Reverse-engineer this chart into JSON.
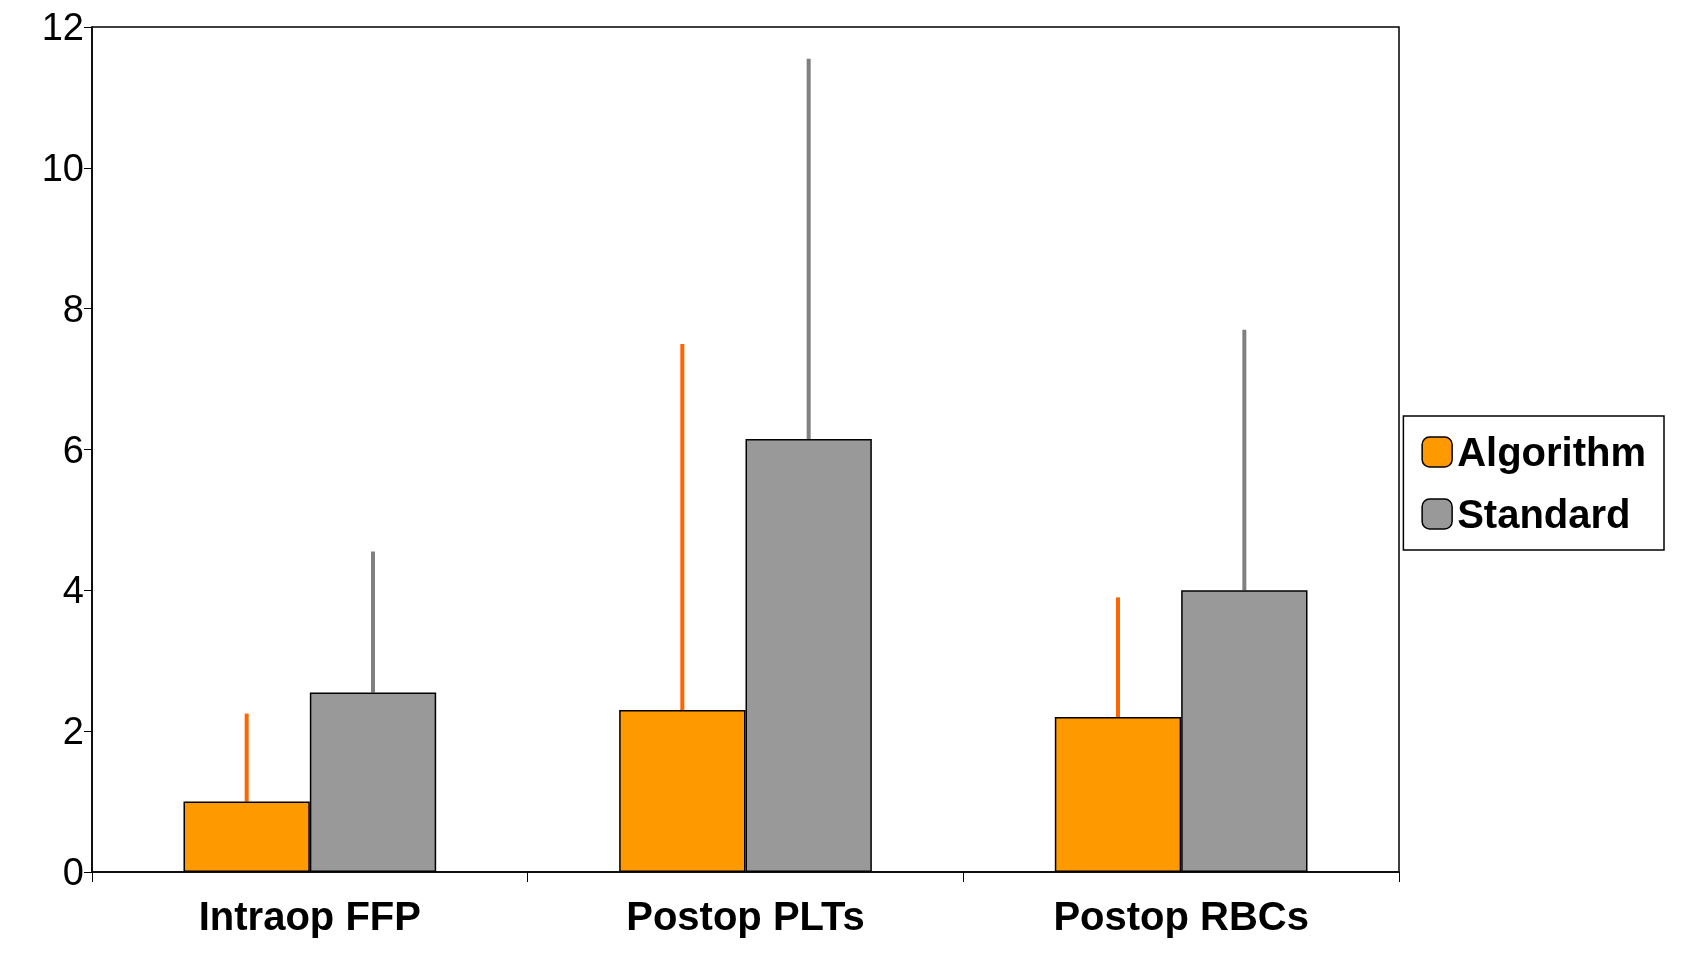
{
  "chart_data": {
    "type": "bar",
    "categories": [
      "Intraop FFP",
      "Postop PLTs",
      "Postop RBCs"
    ],
    "series": [
      {
        "name": "Algorithm",
        "color": "#ff9900",
        "values": [
          1.0,
          2.3,
          2.2
        ],
        "errors": [
          [
            1.0,
            2.25
          ],
          [
            2.3,
            7.5
          ],
          [
            2.2,
            3.9
          ]
        ]
      },
      {
        "name": "Standard",
        "color": "#999999",
        "values": [
          2.55,
          6.15,
          4.0
        ],
        "errors": [
          [
            2.55,
            4.55
          ],
          [
            6.15,
            11.55
          ],
          [
            4.0,
            7.7
          ]
        ]
      }
    ],
    "ylim": [
      0,
      12
    ],
    "yticks": [
      0,
      2,
      4,
      6,
      8,
      10,
      12
    ],
    "grid": false,
    "legend": "right"
  }
}
